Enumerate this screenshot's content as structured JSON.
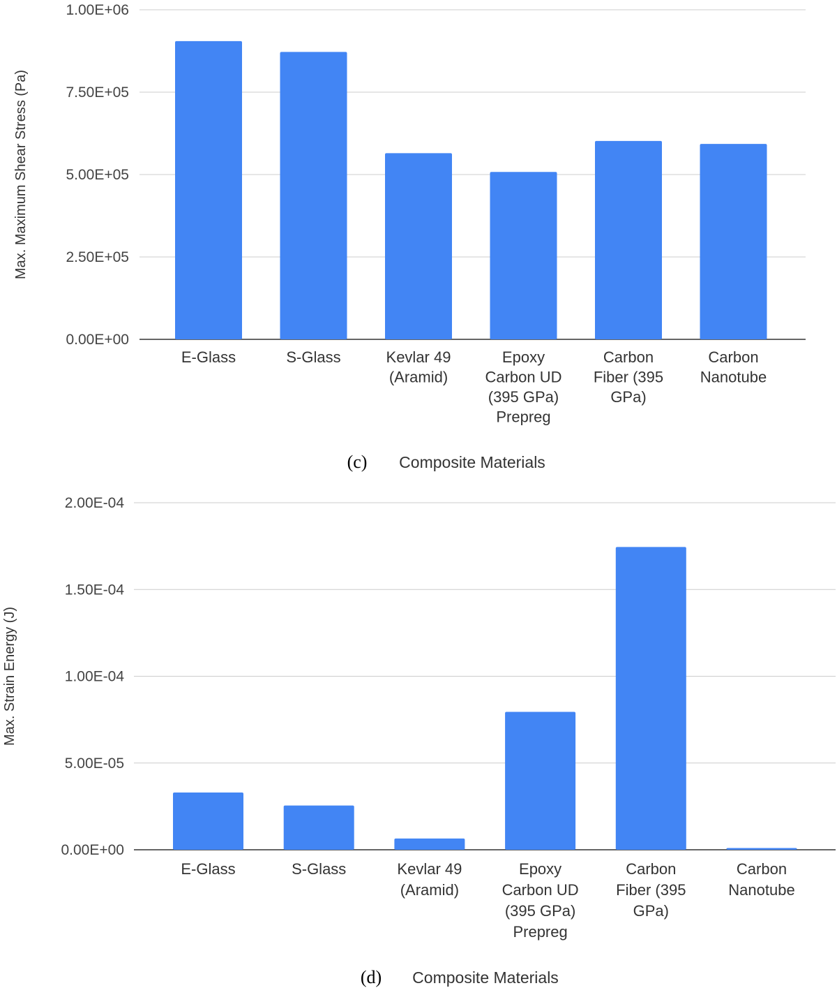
{
  "chart_data": [
    {
      "type": "bar",
      "panel_label": "(c)",
      "xlabel": "Composite Materials",
      "ylabel": "Max. Maximum Shear Stress (Pa)",
      "ylim": [
        0,
        1000000
      ],
      "yticks": [
        0,
        250000,
        500000,
        750000,
        1000000
      ],
      "ytick_labels": [
        "0.00E+00",
        "2.50E+05",
        "5.00E+05",
        "7.50E+05",
        "1.00E+06"
      ],
      "grid": true,
      "bar_color": "#4285F4",
      "categories": [
        [
          "E-Glass"
        ],
        [
          "S-Glass"
        ],
        [
          "Kevlar 49",
          "(Aramid)"
        ],
        [
          "Epoxy",
          "Carbon UD",
          "(395 GPa)",
          "Prepreg"
        ],
        [
          "Carbon",
          "Fiber (395",
          "GPa)"
        ],
        [
          "Carbon",
          "Nanotube"
        ]
      ],
      "values": [
        905000,
        872000,
        565000,
        508000,
        602000,
        593000
      ]
    },
    {
      "type": "bar",
      "panel_label": "(d)",
      "xlabel": "Composite Materials",
      "ylabel": "Max. Strain Energy (J)",
      "ylim": [
        0,
        0.0002
      ],
      "yticks": [
        0,
        5e-05,
        0.0001,
        0.00015,
        0.0002
      ],
      "ytick_labels": [
        "0.00E+00",
        "5.00E-05",
        "1.00E-04",
        "1.50E-04",
        "2.00E-04"
      ],
      "grid": true,
      "bar_color": "#4285F4",
      "categories": [
        [
          "E-Glass"
        ],
        [
          "S-Glass"
        ],
        [
          "Kevlar 49",
          "(Aramid)"
        ],
        [
          "Epoxy",
          "Carbon UD",
          "(395 GPa)",
          "Prepreg"
        ],
        [
          "Carbon",
          "Fiber (395",
          "GPa)"
        ],
        [
          "Carbon",
          "Nanotube"
        ]
      ],
      "values": [
        3.3e-05,
        2.55e-05,
        6.5e-06,
        7.95e-05,
        0.0001745,
        1e-06
      ]
    }
  ]
}
